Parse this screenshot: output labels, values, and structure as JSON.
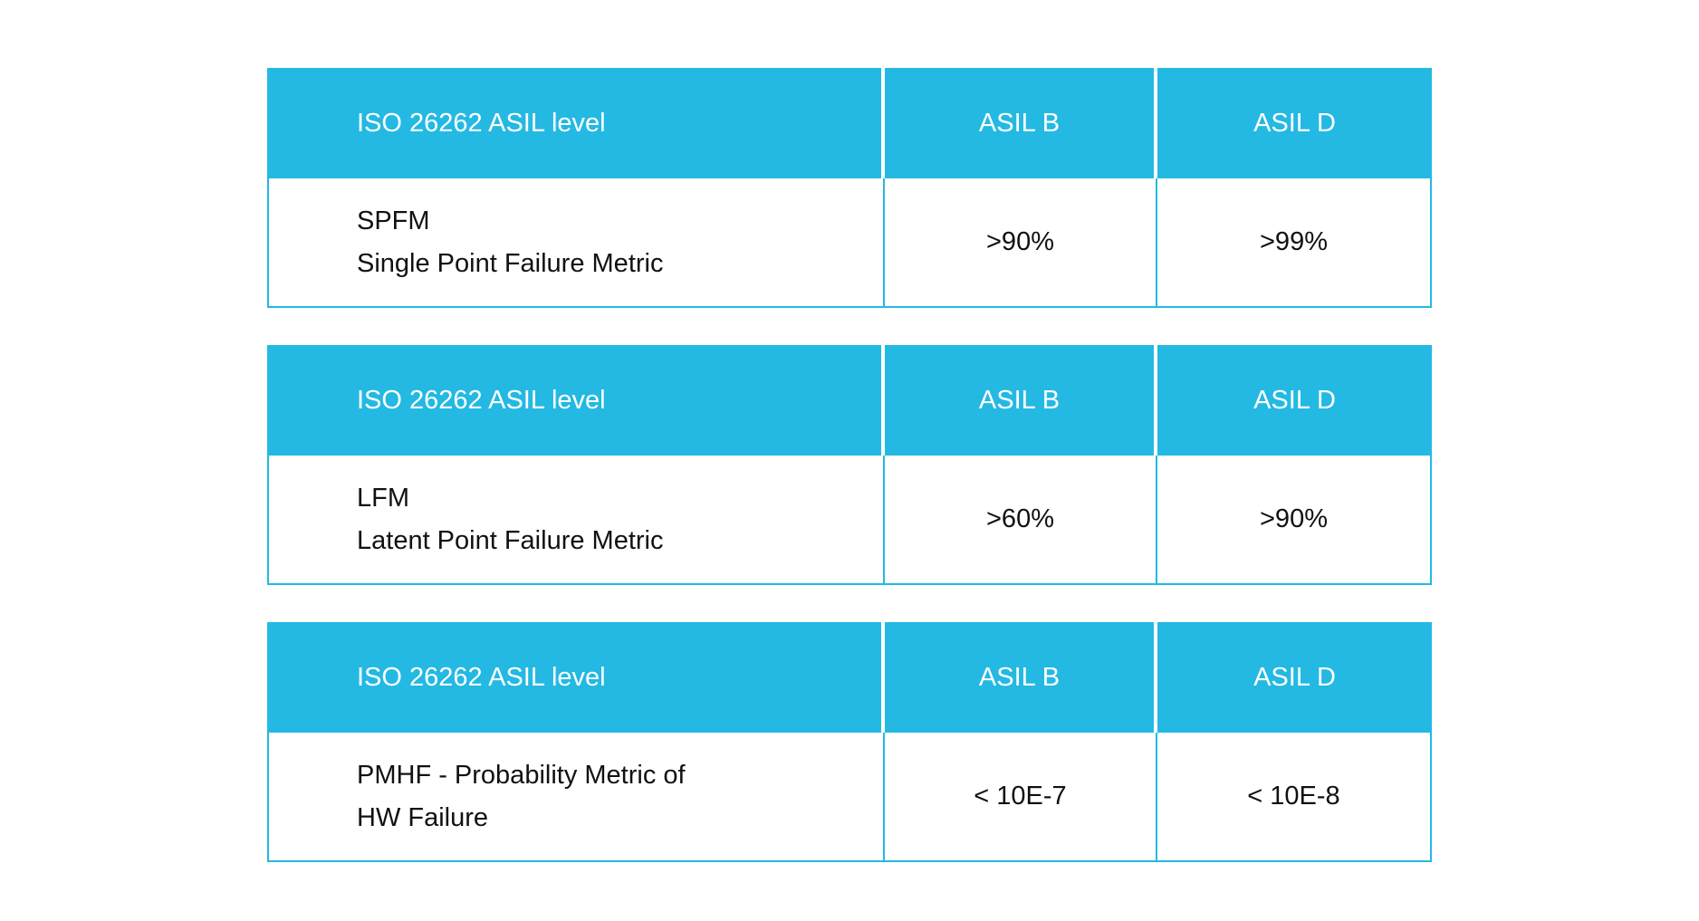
{
  "colors": {
    "accent": "#23B9E3",
    "header_text": "#FFFFFF",
    "body_text": "#111111",
    "page_bg": "#FFFFFF"
  },
  "tables": [
    {
      "headers": [
        "ISO 26262 ASIL level",
        "ASIL B",
        "ASIL D"
      ],
      "row": {
        "metric_line1": "SPFM",
        "metric_line2": "Single Point Failure Metric",
        "asil_b": ">90%",
        "asil_d": ">99%"
      }
    },
    {
      "headers": [
        "ISO 26262 ASIL level",
        "ASIL B",
        "ASIL D"
      ],
      "row": {
        "metric_line1": "LFM",
        "metric_line2": "Latent Point Failure Metric",
        "asil_b": ">60%",
        "asil_d": ">90%"
      }
    },
    {
      "headers": [
        "ISO 26262 ASIL level",
        "ASIL B",
        "ASIL D"
      ],
      "row": {
        "metric_line1": "PMHF - Probability Metric of",
        "metric_line2": "HW Failure",
        "asil_b": "< 10E-7",
        "asil_d": "< 10E-8"
      }
    }
  ]
}
